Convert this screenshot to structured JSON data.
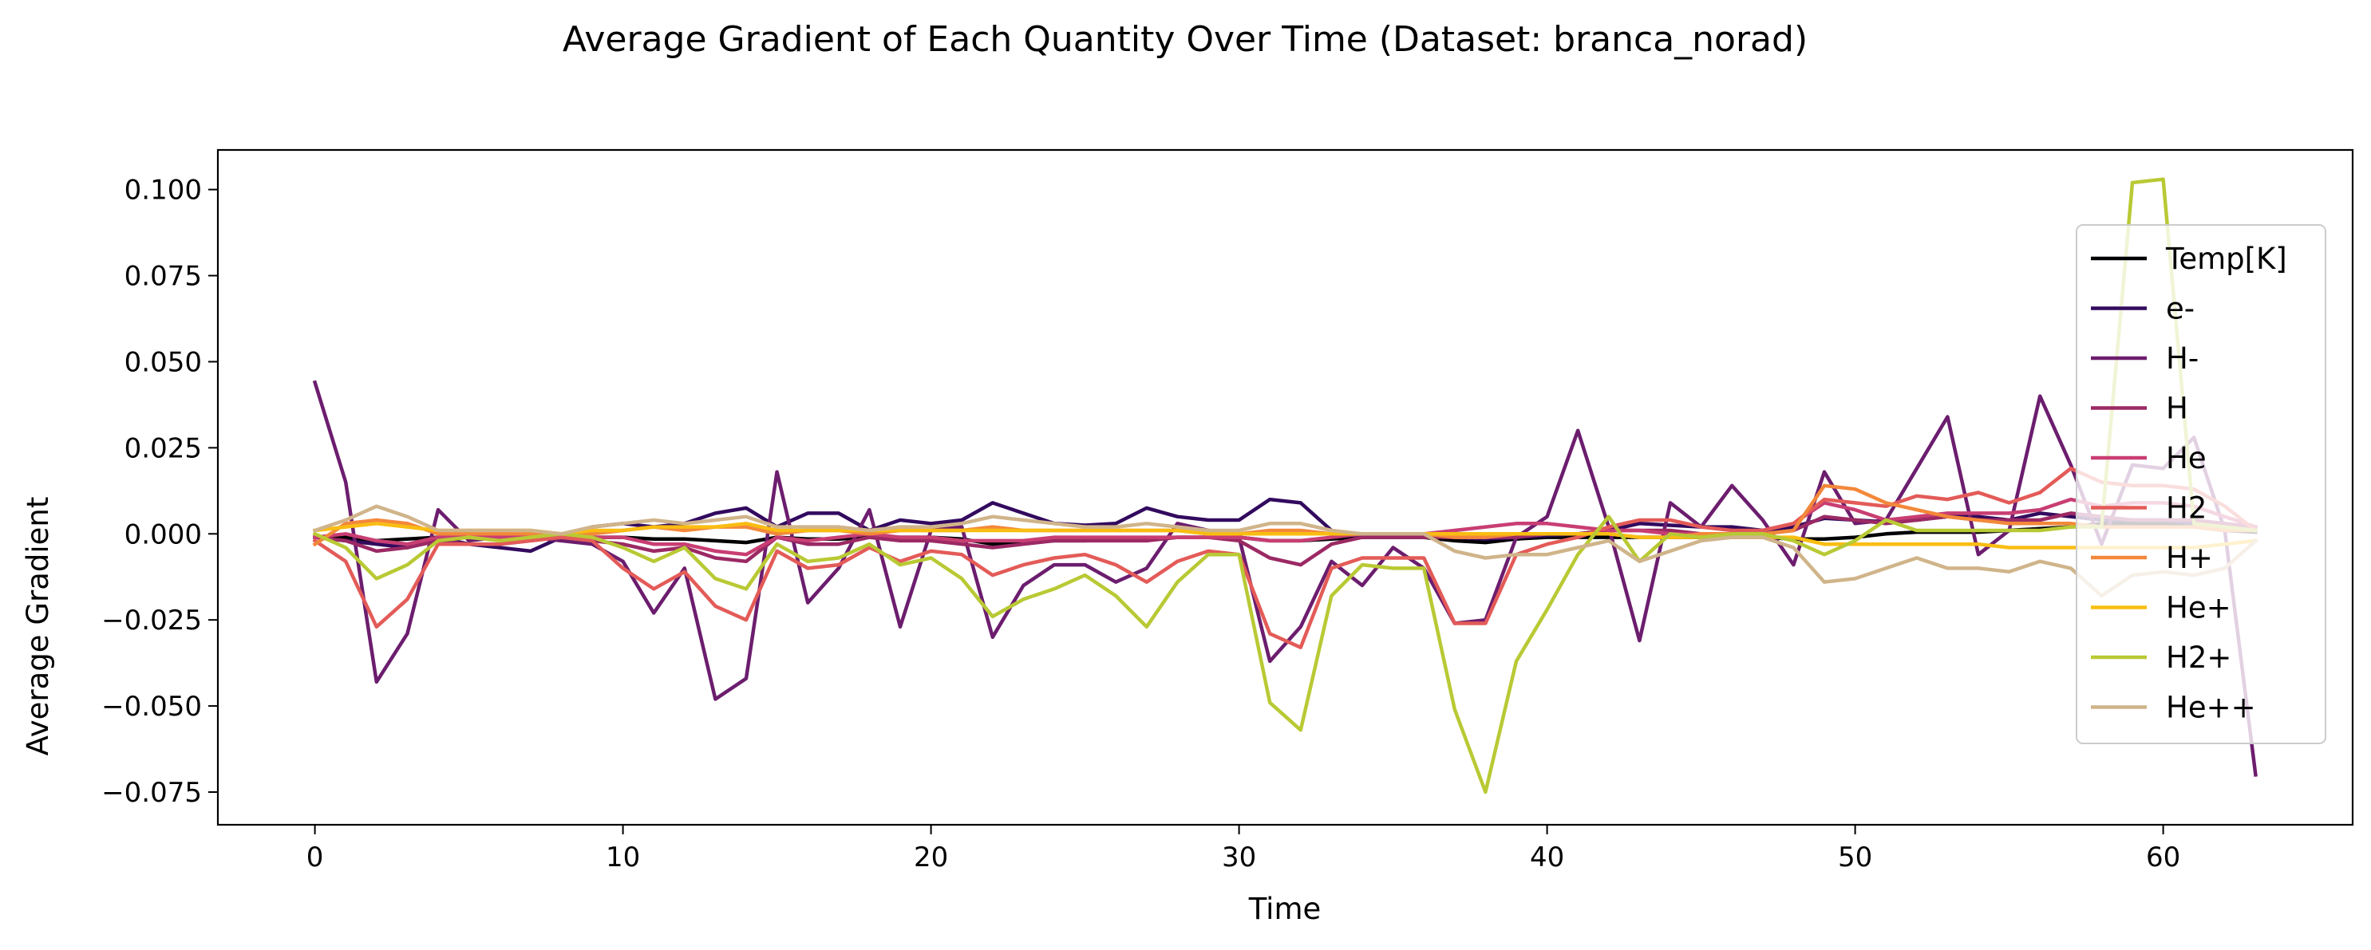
{
  "chart_data": {
    "type": "line",
    "title": "Average Gradient of Each Quantity Over Time (Dataset: branca_norad)",
    "xlabel": "Time",
    "ylabel": "Average Gradient",
    "xlim": [
      -3.15,
      66.15
    ],
    "ylim": [
      -0.0845,
      0.1115
    ],
    "xticks": [
      0,
      10,
      20,
      30,
      40,
      50,
      60
    ],
    "yticks": [
      -0.075,
      -0.05,
      -0.025,
      0.0,
      0.025,
      0.05,
      0.075,
      0.1
    ],
    "ytick_labels": [
      "−0.075",
      "−0.050",
      "−0.025",
      "0.000",
      "0.025",
      "0.050",
      "0.075",
      "0.100"
    ],
    "grid": false,
    "legend_position": "right",
    "x": [
      0,
      1,
      2,
      3,
      4,
      5,
      6,
      7,
      8,
      9,
      10,
      11,
      12,
      13,
      14,
      15,
      16,
      17,
      18,
      19,
      20,
      21,
      22,
      23,
      24,
      25,
      26,
      27,
      28,
      29,
      30,
      31,
      32,
      33,
      34,
      35,
      36,
      37,
      38,
      39,
      40,
      41,
      42,
      43,
      44,
      45,
      46,
      47,
      48,
      49,
      50,
      51,
      52,
      53,
      54,
      55,
      56,
      57,
      58,
      59,
      60,
      61,
      62,
      63
    ],
    "series": [
      {
        "name": "Temp[K]",
        "color": "#000004",
        "values": [
          -0.001,
          -0.001,
          -0.002,
          -0.0015,
          -0.001,
          -0.001,
          -0.001,
          -0.001,
          -0.001,
          -0.001,
          -0.001,
          -0.0015,
          -0.0015,
          -0.002,
          -0.0025,
          -0.001,
          -0.0015,
          -0.0015,
          -0.001,
          -0.001,
          -0.001,
          -0.0015,
          -0.003,
          -0.0025,
          -0.002,
          -0.002,
          -0.0015,
          -0.0015,
          -0.001,
          -0.001,
          -0.001,
          -0.002,
          -0.002,
          -0.0015,
          -0.001,
          -0.001,
          -0.001,
          -0.002,
          -0.0025,
          -0.0015,
          -0.001,
          -0.001,
          -0.001,
          -0.001,
          -0.001,
          -0.001,
          -0.001,
          -0.001,
          -0.0015,
          -0.0015,
          -0.001,
          0.0,
          0.0005,
          0.0005,
          0.0005,
          0.001,
          0.0015,
          0.002,
          0.003,
          0.003,
          0.003,
          0.002,
          0.001,
          0.0005
        ]
      },
      {
        "name": "e-",
        "color": "#320a5e",
        "values": [
          -0.001,
          -0.002,
          -0.003,
          -0.004,
          -0.001,
          -0.003,
          -0.004,
          -0.005,
          -0.001,
          0.002,
          0.003,
          0.002,
          0.003,
          0.006,
          0.0075,
          0.002,
          0.006,
          0.006,
          0.001,
          0.004,
          0.003,
          0.004,
          0.009,
          0.006,
          0.003,
          0.0025,
          0.003,
          0.0075,
          0.005,
          0.004,
          0.004,
          0.01,
          0.009,
          0.001,
          -0.001,
          -0.0005,
          0.0,
          -0.001,
          -0.0015,
          -0.001,
          -0.0005,
          0.0,
          0.001,
          0.003,
          0.0025,
          0.002,
          0.002,
          0.001,
          0.002,
          0.0045,
          0.004,
          0.0035,
          0.004,
          0.005,
          0.005,
          0.004,
          0.006,
          0.005,
          0.004,
          0.004,
          0.004,
          0.003,
          0.002,
          0.002
        ]
      },
      {
        "name": "H-",
        "color": "#6c1d6e",
        "values": [
          0.044,
          0.015,
          -0.043,
          -0.029,
          0.007,
          -0.002,
          -0.001,
          -0.001,
          -0.002,
          -0.003,
          -0.008,
          -0.023,
          -0.01,
          -0.048,
          -0.042,
          0.018,
          -0.02,
          -0.01,
          0.007,
          -0.027,
          0.001,
          0.002,
          -0.03,
          -0.015,
          -0.009,
          -0.009,
          -0.014,
          -0.01,
          0.003,
          0.001,
          -0.001,
          -0.037,
          -0.027,
          -0.008,
          -0.015,
          -0.004,
          -0.01,
          -0.026,
          -0.025,
          -0.001,
          0.005,
          0.03,
          0.002,
          -0.031,
          0.009,
          0.002,
          0.014,
          0.004,
          -0.009,
          0.018,
          0.003,
          0.004,
          0.019,
          0.034,
          -0.006,
          0.001,
          0.04,
          0.02,
          -0.003,
          0.02,
          0.019,
          0.028,
          0.001,
          -0.07
        ]
      },
      {
        "name": "H",
        "color": "#9b2964",
        "values": [
          -0.001,
          -0.002,
          -0.005,
          -0.004,
          -0.002,
          -0.003,
          -0.003,
          -0.002,
          -0.001,
          -0.002,
          -0.003,
          -0.005,
          -0.004,
          -0.007,
          -0.008,
          -0.001,
          -0.003,
          -0.003,
          -0.001,
          -0.002,
          -0.002,
          -0.003,
          -0.004,
          -0.003,
          -0.002,
          -0.002,
          -0.002,
          -0.002,
          -0.001,
          -0.001,
          -0.002,
          -0.007,
          -0.009,
          -0.003,
          -0.001,
          -0.001,
          -0.001,
          -0.001,
          -0.001,
          -0.001,
          0.0,
          0.0,
          0.001,
          0.001,
          0.001,
          0.0,
          0.0,
          0.0,
          0.001,
          0.005,
          0.004,
          0.003,
          0.004,
          0.005,
          0.004,
          0.004,
          0.004,
          0.006,
          0.005,
          0.004,
          0.004,
          0.004,
          0.003,
          0.002
        ]
      },
      {
        "name": "He",
        "color": "#c83e73",
        "values": [
          -0.001,
          0.0,
          -0.002,
          -0.003,
          -0.001,
          -0.001,
          -0.001,
          -0.001,
          0.0,
          -0.001,
          -0.001,
          -0.003,
          -0.003,
          -0.005,
          -0.006,
          -0.001,
          -0.002,
          -0.001,
          0.0,
          -0.001,
          -0.001,
          -0.002,
          -0.002,
          -0.002,
          -0.001,
          -0.001,
          -0.001,
          -0.001,
          -0.001,
          -0.001,
          -0.001,
          -0.002,
          -0.002,
          -0.001,
          0.0,
          0.0,
          0.0,
          0.001,
          0.002,
          0.003,
          0.003,
          0.002,
          0.001,
          0.001,
          0.0,
          0.0,
          0.0,
          0.001,
          0.003,
          0.009,
          0.007,
          0.004,
          0.005,
          0.006,
          0.006,
          0.006,
          0.007,
          0.01,
          0.008,
          0.009,
          0.009,
          0.008,
          0.005,
          0.002
        ]
      },
      {
        "name": "H2",
        "color": "#e35b58",
        "values": [
          -0.002,
          -0.008,
          -0.027,
          -0.019,
          -0.003,
          -0.003,
          -0.003,
          -0.002,
          -0.001,
          -0.002,
          -0.01,
          -0.016,
          -0.011,
          -0.021,
          -0.025,
          -0.005,
          -0.01,
          -0.009,
          -0.004,
          -0.008,
          -0.005,
          -0.006,
          -0.012,
          -0.009,
          -0.007,
          -0.006,
          -0.009,
          -0.014,
          -0.008,
          -0.005,
          -0.006,
          -0.029,
          -0.033,
          -0.01,
          -0.007,
          -0.007,
          -0.007,
          -0.026,
          -0.026,
          -0.006,
          -0.003,
          -0.001,
          0.002,
          0.004,
          0.004,
          0.002,
          0.001,
          0.001,
          0.003,
          0.01,
          0.009,
          0.008,
          0.011,
          0.01,
          0.012,
          0.009,
          0.012,
          0.019,
          0.015,
          0.014,
          0.014,
          0.013,
          0.008,
          0.001
        ]
      },
      {
        "name": "H+",
        "color": "#f3883a",
        "values": [
          -0.003,
          0.003,
          0.004,
          0.003,
          0.0,
          0.0,
          0.0,
          0.0,
          0.0,
          0.0,
          0.001,
          0.002,
          0.001,
          0.002,
          0.002,
          0.0,
          0.001,
          0.001,
          0.0,
          0.001,
          0.001,
          0.001,
          0.002,
          0.001,
          0.001,
          0.001,
          0.001,
          0.001,
          0.001,
          0.0,
          0.0,
          0.001,
          0.001,
          0.0,
          0.0,
          0.0,
          0.0,
          -0.001,
          -0.001,
          0.0,
          0.0,
          0.0,
          0.0,
          -0.001,
          -0.001,
          0.0,
          0.0,
          0.0,
          0.001,
          0.014,
          0.013,
          0.009,
          0.007,
          0.005,
          0.004,
          0.003,
          0.003,
          0.003,
          0.002,
          0.002,
          0.002,
          0.002,
          0.001,
          0.001
        ]
      },
      {
        "name": "He+",
        "color": "#f9bd12",
        "values": [
          0.001,
          0.002,
          0.003,
          0.002,
          0.001,
          0.001,
          0.001,
          0.001,
          0.0,
          0.001,
          0.001,
          0.002,
          0.002,
          0.002,
          0.003,
          0.001,
          0.001,
          0.001,
          0.001,
          0.001,
          0.001,
          0.001,
          0.001,
          0.001,
          0.001,
          0.001,
          0.001,
          0.001,
          0.001,
          0.0,
          0.0,
          0.0,
          0.0,
          0.0,
          0.0,
          0.0,
          0.0,
          0.0,
          0.0,
          0.0,
          0.0,
          0.0,
          0.0,
          -0.001,
          -0.001,
          -0.001,
          -0.001,
          -0.001,
          -0.001,
          -0.003,
          -0.003,
          -0.003,
          -0.003,
          -0.003,
          -0.003,
          -0.004,
          -0.004,
          -0.004,
          -0.004,
          -0.004,
          -0.004,
          -0.004,
          -0.003,
          -0.002
        ]
      },
      {
        "name": "H2+",
        "color": "#b9c934",
        "values": [
          0.0,
          -0.004,
          -0.013,
          -0.009,
          -0.002,
          -0.001,
          -0.002,
          -0.001,
          0.0,
          -0.001,
          -0.004,
          -0.008,
          -0.004,
          -0.013,
          -0.016,
          -0.003,
          -0.008,
          -0.007,
          -0.003,
          -0.009,
          -0.007,
          -0.013,
          -0.024,
          -0.019,
          -0.016,
          -0.012,
          -0.018,
          -0.027,
          -0.014,
          -0.006,
          -0.006,
          -0.049,
          -0.057,
          -0.018,
          -0.009,
          -0.01,
          -0.01,
          -0.051,
          -0.075,
          -0.037,
          -0.022,
          -0.006,
          0.005,
          -0.008,
          0.0,
          -0.001,
          0.0,
          0.0,
          -0.002,
          -0.006,
          -0.002,
          0.004,
          0.001,
          0.001,
          0.001,
          0.001,
          0.001,
          0.002,
          0.002,
          0.102,
          0.103,
          0.003,
          0.002,
          0.001
        ]
      },
      {
        "name": "He++",
        "color": "#d0b48a",
        "values": [
          0.001,
          0.004,
          0.008,
          0.005,
          0.001,
          0.001,
          0.001,
          0.001,
          0.0,
          0.002,
          0.003,
          0.004,
          0.003,
          0.004,
          0.005,
          0.002,
          0.002,
          0.002,
          0.001,
          0.002,
          0.002,
          0.003,
          0.005,
          0.004,
          0.003,
          0.002,
          0.002,
          0.003,
          0.002,
          0.001,
          0.001,
          0.003,
          0.003,
          0.001,
          0.0,
          0.0,
          0.0,
          -0.005,
          -0.007,
          -0.006,
          -0.006,
          -0.004,
          -0.002,
          -0.008,
          -0.005,
          -0.002,
          -0.001,
          -0.001,
          -0.004,
          -0.014,
          -0.013,
          -0.01,
          -0.007,
          -0.01,
          -0.01,
          -0.011,
          -0.008,
          -0.01,
          -0.018,
          -0.012,
          -0.011,
          -0.012,
          -0.01,
          -0.002
        ]
      }
    ]
  }
}
